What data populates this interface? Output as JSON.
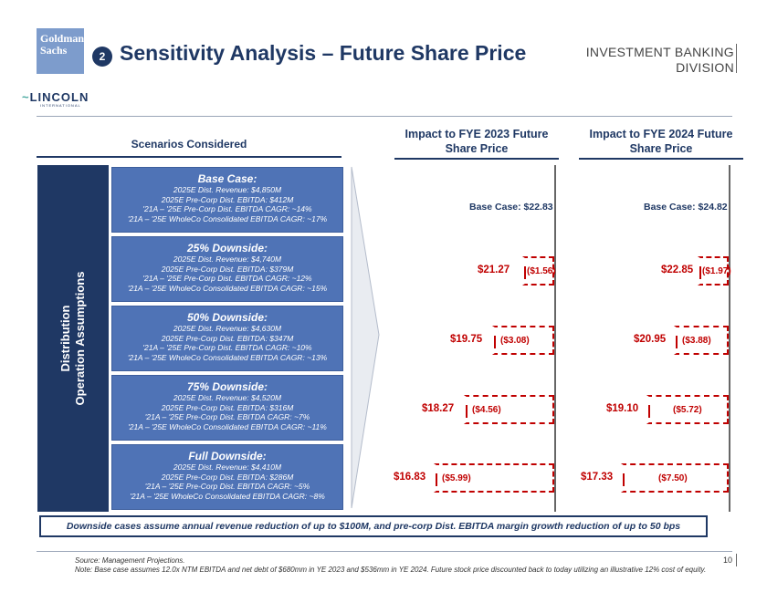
{
  "header": {
    "logo_text": "Goldman Sachs",
    "badge": "2",
    "title": "Sensitivity Analysis – Future Share Price",
    "division_line1": "INVESTMENT BANKING",
    "division_line2": "DIVISION",
    "partner_logo": "LINCOLN",
    "partner_sub": "INTERNATIONAL"
  },
  "scenarios_header": "Scenarios Considered",
  "side_label_line1": "Distribution",
  "side_label_line2": "Operation Assumptions",
  "scenarios": [
    {
      "name": "Base Case:",
      "revenue": "2025E Dist. Revenue: $4,850M",
      "ebitda": "2025E Pre-Corp Dist. EBITDA: $412M",
      "cagr": "'21A – '25E Pre-Corp Dist. EBITDA CAGR: ~14%",
      "wholeco": "'21A – '25E WholeCo Consolidated EBITDA CAGR: ~17%"
    },
    {
      "name": "25% Downside:",
      "revenue": "2025E Dist. Revenue: $4,740M",
      "ebitda": "2025E Pre-Corp Dist. EBITDA: $379M",
      "cagr": "'21A – '25E Pre-Corp Dist. EBITDA CAGR: ~12%",
      "wholeco": "'21A – '25E WholeCo Consolidated EBITDA CAGR: ~15%"
    },
    {
      "name": "50% Downside:",
      "revenue": "2025E Dist. Revenue: $4,630M",
      "ebitda": "2025E Pre-Corp Dist. EBITDA: $347M",
      "cagr": "'21A – '25E Pre-Corp Dist. EBITDA CAGR: ~10%",
      "wholeco": "'21A – '25E WholeCo Consolidated EBITDA CAGR: ~13%"
    },
    {
      "name": "75% Downside:",
      "revenue": "2025E Dist. Revenue: $4,520M",
      "ebitda": "2025E Pre-Corp Dist. EBITDA: $316M",
      "cagr": "'21A – '25E Pre-Corp Dist. EBITDA CAGR: ~7%",
      "wholeco": "'21A – '25E WholeCo Consolidated EBITDA CAGR: ~11%"
    },
    {
      "name": "Full Downside:",
      "revenue": "2025E Dist. Revenue: $4,410M",
      "ebitda": "2025E Pre-Corp Dist. EBITDA: $286M",
      "cagr": "'21A – '25E Pre-Corp Dist. EBITDA CAGR: ~5%",
      "wholeco": "'21A – '25E WholeCo Consolidated EBITDA CAGR: ~8%"
    }
  ],
  "fye2023": {
    "header_line1": "Impact to FYE 2023 Future",
    "header_line2": "Share Price",
    "base": "Base Case: $22.83",
    "rows": [
      {
        "price": "$21.27",
        "delta": "($1.56)",
        "delta_value": -1.56
      },
      {
        "price": "$19.75",
        "delta": "($3.08)",
        "delta_value": -3.08
      },
      {
        "price": "$18.27",
        "delta": "($4.56)",
        "delta_value": -4.56
      },
      {
        "price": "$16.83",
        "delta": "($5.99)",
        "delta_value": -5.99
      }
    ]
  },
  "fye2024": {
    "header_line1": "Impact to FYE 2024 Future",
    "header_line2": "Share Price",
    "base": "Base Case: $24.82",
    "rows": [
      {
        "price": "$22.85",
        "delta": "($1.97)",
        "delta_value": -1.97
      },
      {
        "price": "$20.95",
        "delta": "($3.88)",
        "delta_value": -3.88
      },
      {
        "price": "$19.10",
        "delta": "($5.72)",
        "delta_value": -5.72
      },
      {
        "price": "$17.33",
        "delta": "($7.50)",
        "delta_value": -7.5
      }
    ]
  },
  "footer_note": "Downside cases assume annual revenue reduction of up to $100M, and pre-corp Dist. EBITDA margin growth reduction of up to 50 bps",
  "source": "Source: Management Projections.",
  "note": "Note: Base case assumes 12.0x NTM EBITDA and net debt of $680mm in YE 2023 and $536mm in YE 2024. Future stock price discounted back to today utilizing an illustrative 12% cost of equity.",
  "page_number": "10",
  "colors": {
    "navy": "#1f3864",
    "scenario_blue": "#4f73b6",
    "red": "#c00000"
  }
}
